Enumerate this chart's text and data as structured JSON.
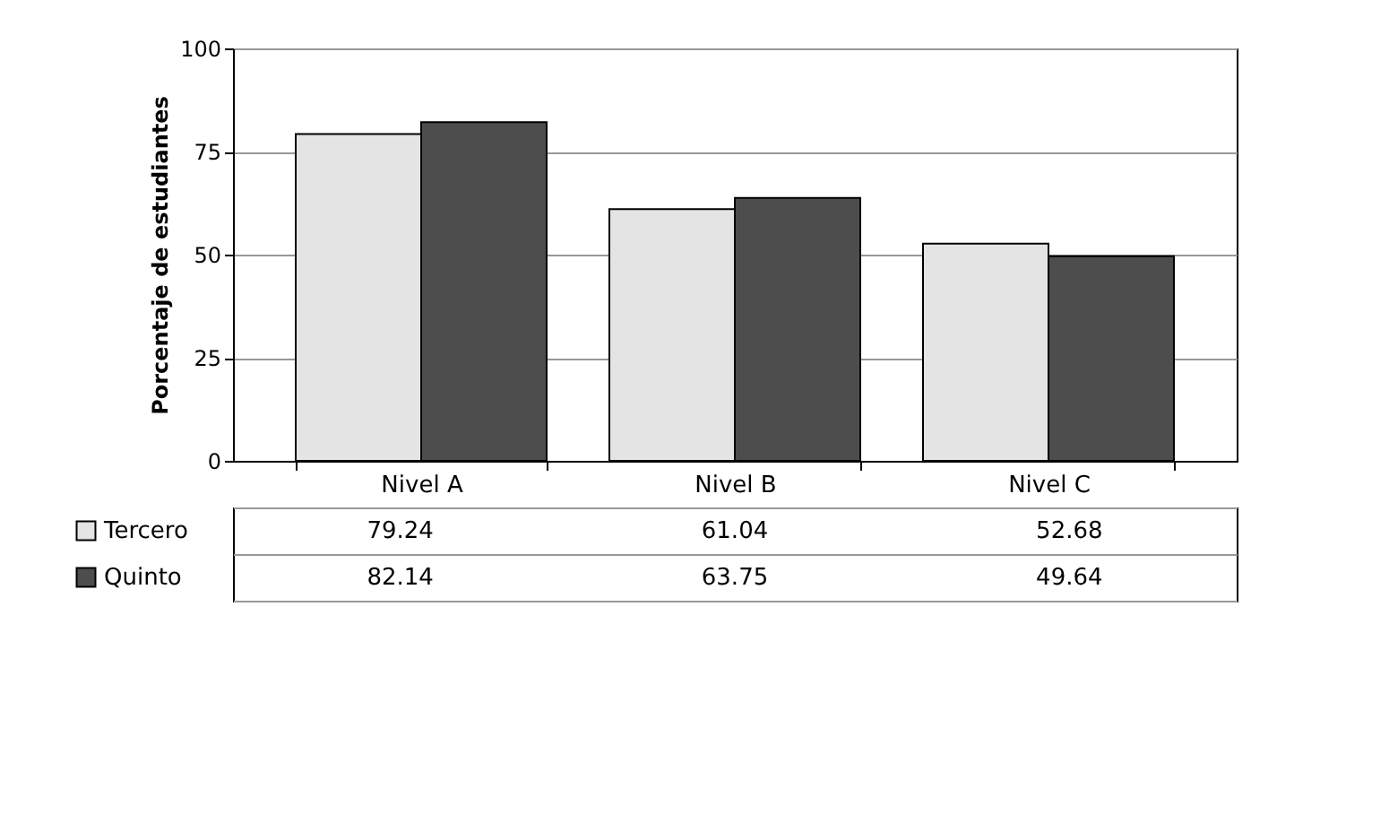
{
  "chart_data": {
    "type": "bar",
    "ylabel": "Porcentaje de estudiantes",
    "categories": [
      "Nivel A",
      "Nivel B",
      "Nivel C"
    ],
    "series": [
      {
        "name": "Tercero",
        "color": "#e4e4e4",
        "values": [
          79.24,
          61.04,
          52.68
        ]
      },
      {
        "name": "Quinto",
        "color": "#4d4d4d",
        "values": [
          82.14,
          63.75,
          49.64
        ]
      }
    ],
    "ylim": [
      0,
      100
    ],
    "yticks": [
      0,
      25,
      50,
      75,
      100
    ],
    "grid": "y",
    "data_labels": true,
    "legend": "bottom"
  }
}
